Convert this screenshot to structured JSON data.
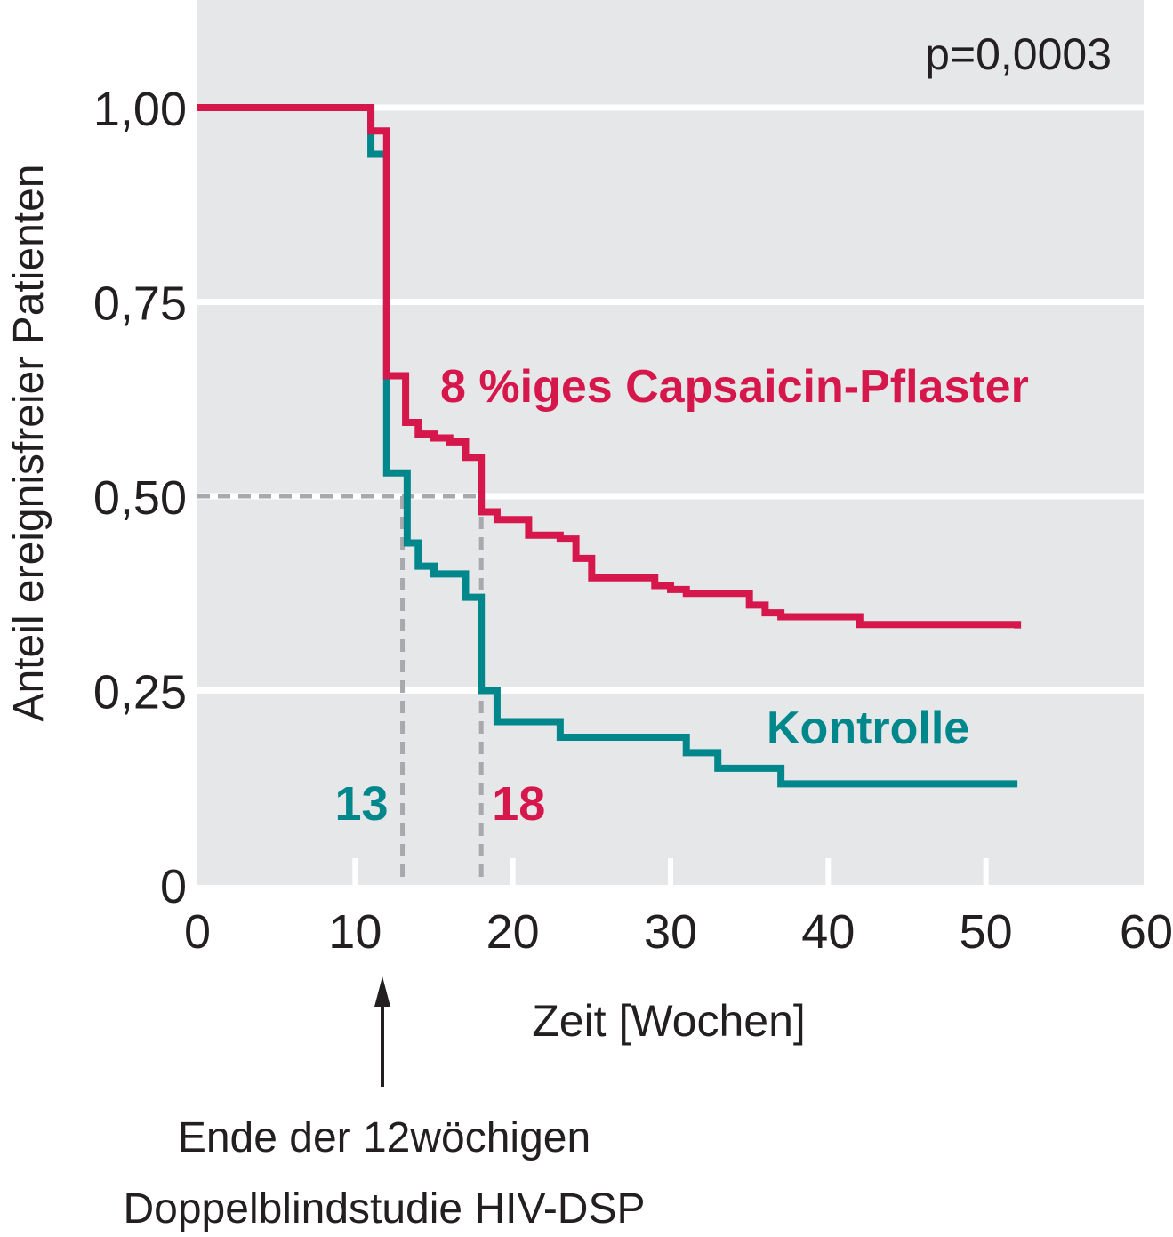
{
  "chart_data": {
    "type": "line",
    "subtype": "kaplan-meier-step",
    "ylabel": "Anteil ereignisfreier Patienten",
    "xlabel": "Zeit [Wochen]",
    "p_value_label": "p=0,0003",
    "xlim": [
      0,
      60
    ],
    "ylim": [
      0,
      1.12
    ],
    "x_ticks": [
      {
        "value": 0,
        "label": "0"
      },
      {
        "value": 10,
        "label": "10"
      },
      {
        "value": 20,
        "label": "20"
      },
      {
        "value": 30,
        "label": "30"
      },
      {
        "value": 40,
        "label": "40"
      },
      {
        "value": 50,
        "label": "50"
      },
      {
        "value": 60,
        "label": "60"
      }
    ],
    "y_ticks": [
      {
        "value": 0,
        "label": "0"
      },
      {
        "value": 0.25,
        "label": "0,25"
      },
      {
        "value": 0.5,
        "label": "0,50"
      },
      {
        "value": 0.75,
        "label": "0,75"
      },
      {
        "value": 1.0,
        "label": "1,00"
      }
    ],
    "grid": true,
    "background": "#e6e7e9",
    "series": [
      {
        "name": "8 %iges Capsaicin-Pflaster",
        "color": "#d6174b",
        "x": [
          0,
          11,
          11.3,
          12,
          12.8,
          13.2,
          14,
          15,
          16,
          17,
          18,
          19,
          21,
          23,
          24,
          25,
          29,
          30,
          31,
          35,
          36,
          37,
          40,
          42,
          52
        ],
        "y": [
          1.0,
          0.97,
          0.97,
          0.655,
          0.655,
          0.595,
          0.58,
          0.575,
          0.57,
          0.55,
          0.48,
          0.47,
          0.45,
          0.445,
          0.42,
          0.395,
          0.385,
          0.38,
          0.375,
          0.36,
          0.35,
          0.345,
          0.345,
          0.335,
          0.33
        ]
      },
      {
        "name": "Kontrolle",
        "color": "#00878c",
        "x": [
          0,
          11,
          12,
          12.8,
          13.3,
          14,
          15,
          16,
          17,
          18,
          19,
          20,
          23,
          31,
          33,
          37,
          52
        ],
        "y": [
          1.0,
          0.94,
          0.53,
          0.53,
          0.44,
          0.41,
          0.4,
          0.4,
          0.37,
          0.25,
          0.21,
          0.21,
          0.19,
          0.17,
          0.15,
          0.13,
          0.13
        ]
      }
    ],
    "median_markers": [
      {
        "x": 13,
        "y": 0.5,
        "label": "13",
        "color": "#00878c"
      },
      {
        "x": 18,
        "y": 0.5,
        "label": "18",
        "color": "#d6174b"
      }
    ],
    "annotation": {
      "x": 12,
      "lines": [
        "Ende der 12wöchigen",
        "Doppelblindstudie HIV-DSP"
      ]
    }
  }
}
